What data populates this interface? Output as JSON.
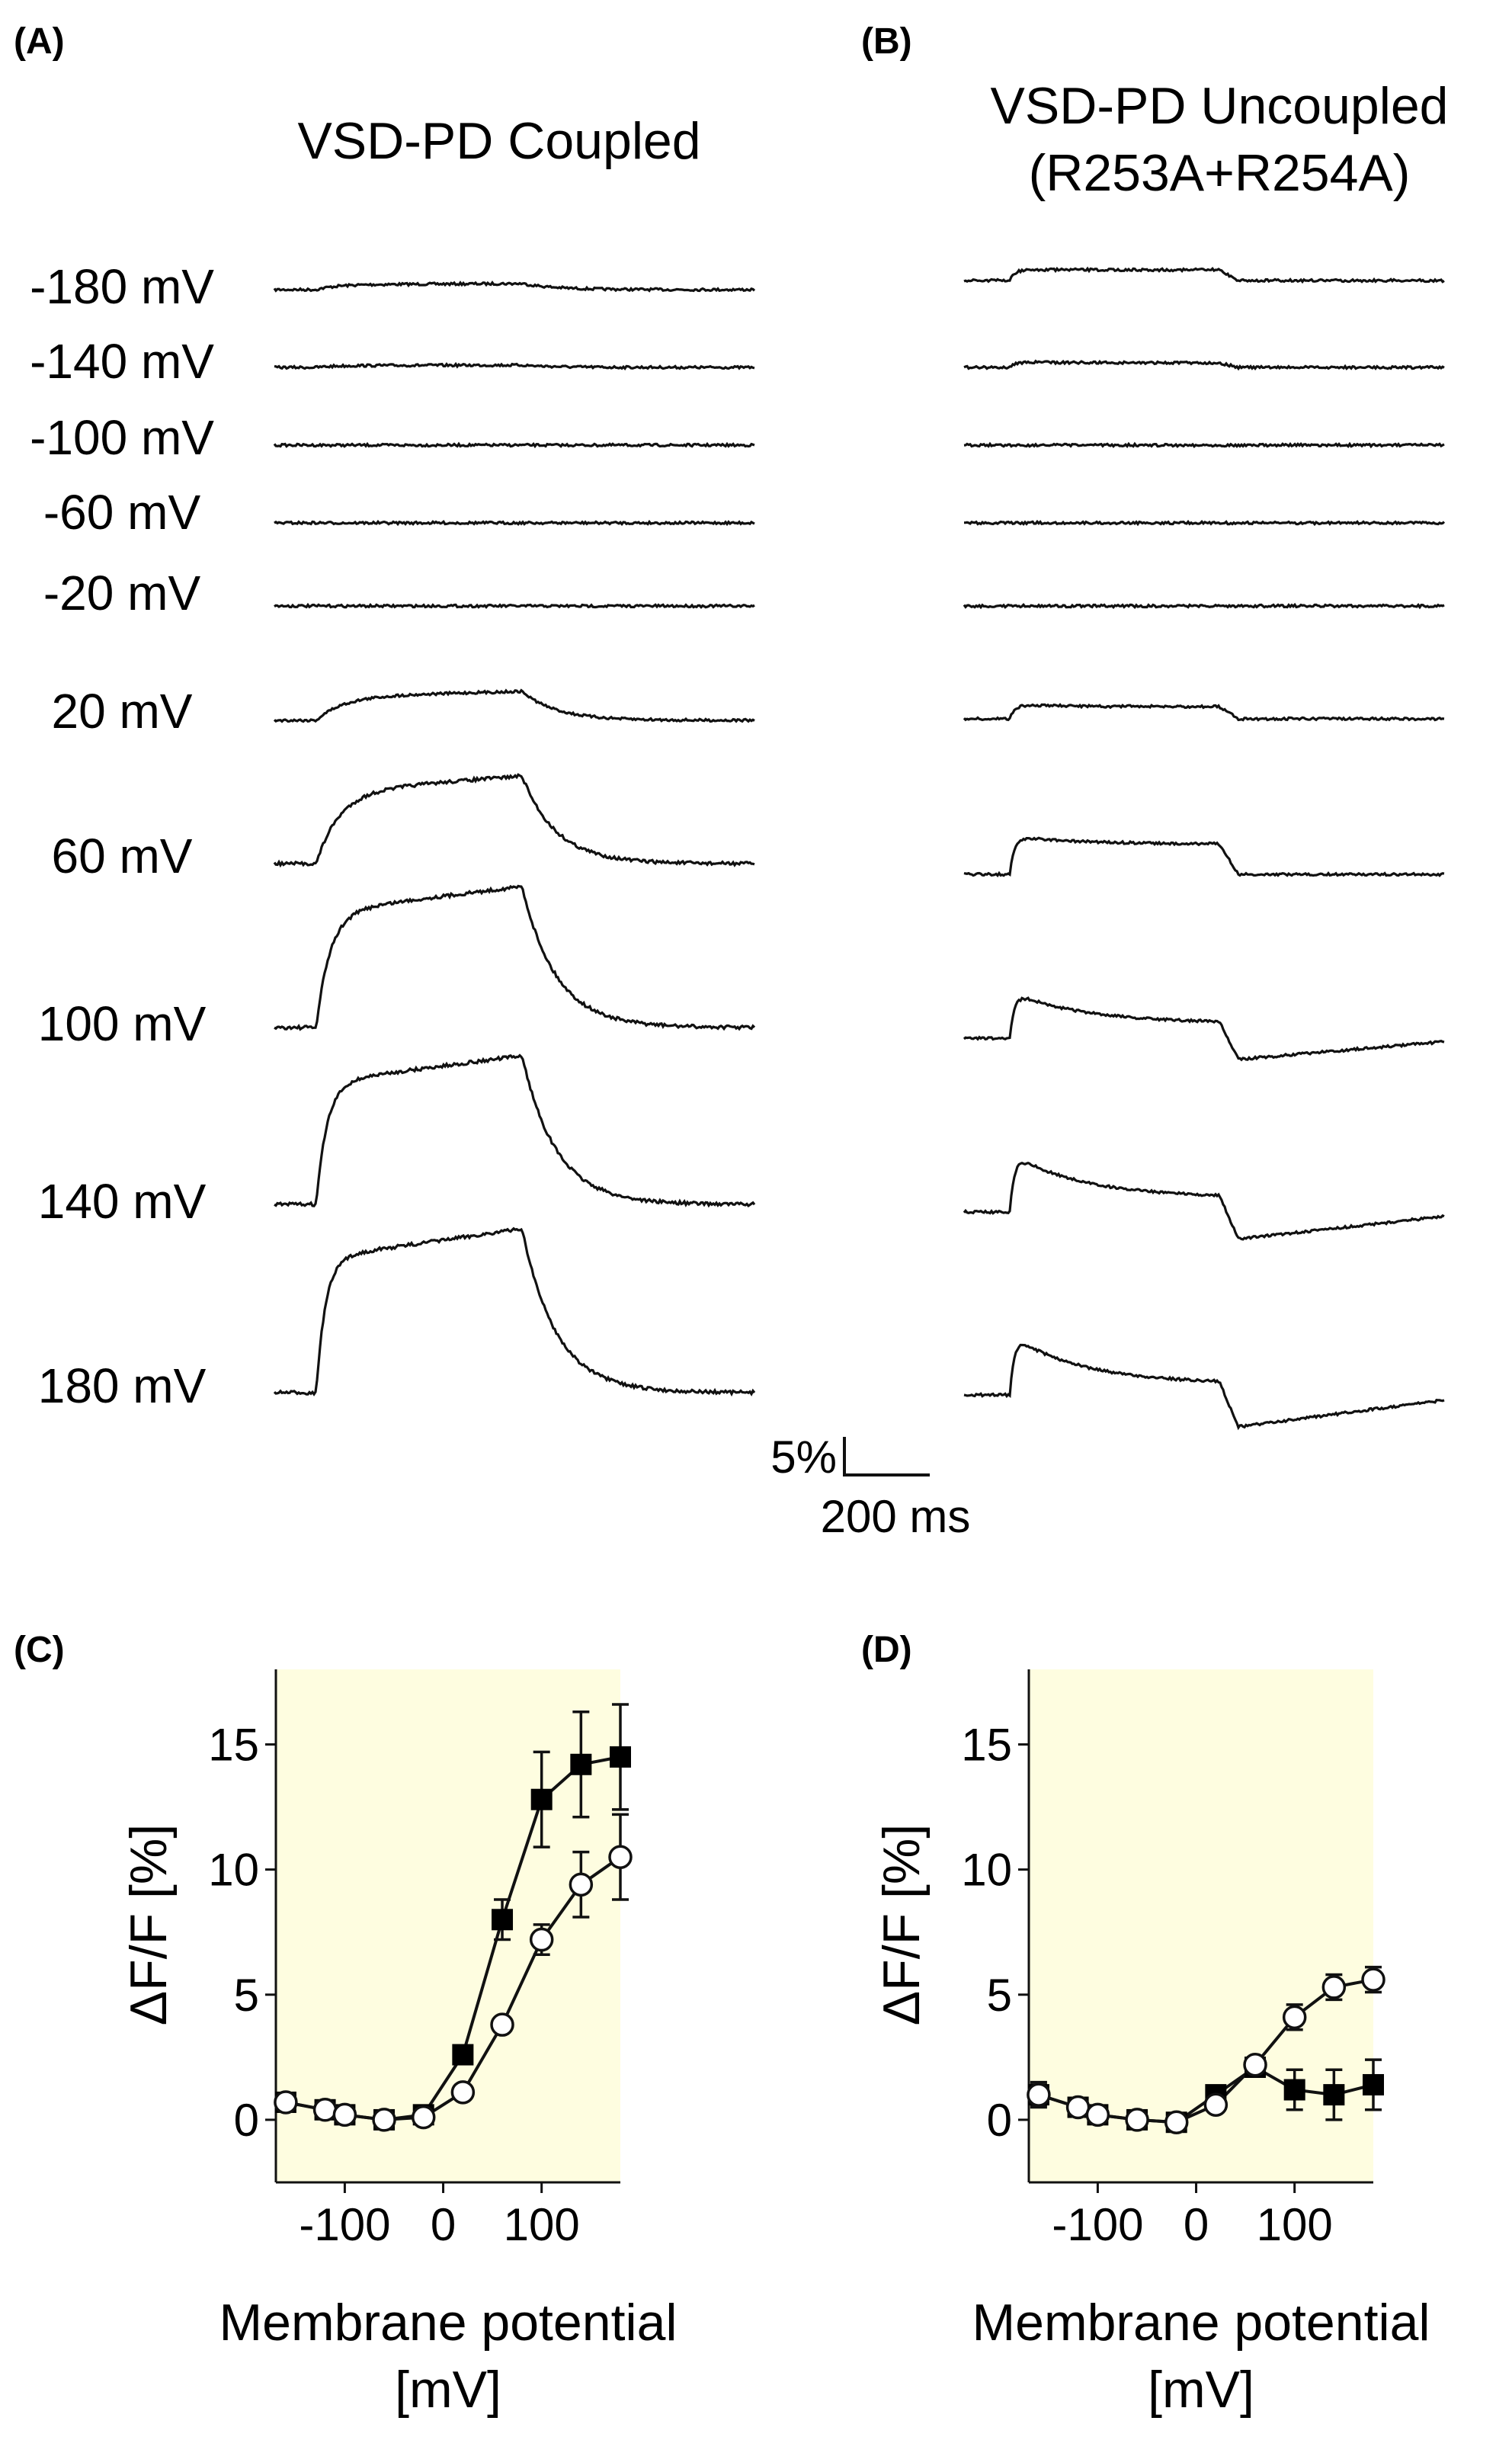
{
  "panels": {
    "A": {
      "letter": "(A)",
      "title": "VSD-PD Coupled",
      "voltage_labels": [
        "-180 mV",
        "-140 mV",
        "-100 mV",
        "-60 mV",
        "-20 mV",
        "20 mV",
        "60 mV",
        "100 mV",
        "140 mV",
        "180 mV"
      ]
    },
    "B": {
      "letter": "(B)",
      "title_line1": "VSD-PD Uncoupled",
      "title_line2": "(R253A+R254A)"
    },
    "C": {
      "letter": "(C)"
    },
    "D": {
      "letter": "(D)"
    }
  },
  "scale_bar": {
    "y_label": "5%",
    "x_label": "200 ms",
    "y_value_percent": 5,
    "x_value_ms": 200
  },
  "colors": {
    "trace": "#111111",
    "plot_bg": "#fefde0",
    "filled_marker": "#000000",
    "open_marker": "#ffffff"
  },
  "chart_data": [
    {
      "panel": "C",
      "type": "scatter",
      "ylabel": "ΔF/F [%]",
      "xlabel_line1": "Membrane potential",
      "xlabel_line2": "[mV]",
      "xlim": [
        -170,
        180
      ],
      "ylim": [
        -2.5,
        18
      ],
      "xticks": [
        -100,
        0,
        100
      ],
      "yticks": [
        0,
        5,
        10,
        15
      ],
      "series": [
        {
          "marker": "filled-square",
          "x": [
            -160,
            -120,
            -100,
            -60,
            -20,
            20,
            60,
            100,
            140,
            180
          ],
          "y": [
            0.7,
            0.4,
            0.2,
            0.0,
            0.2,
            2.6,
            8.0,
            12.8,
            14.2,
            14.5
          ],
          "err": [
            0,
            0,
            0,
            0,
            0,
            0,
            0.8,
            1.9,
            2.1,
            2.1
          ]
        },
        {
          "marker": "open-circle",
          "x": [
            -160,
            -120,
            -100,
            -60,
            -20,
            20,
            60,
            100,
            140,
            180
          ],
          "y": [
            0.7,
            0.4,
            0.2,
            0.0,
            0.1,
            1.1,
            3.8,
            7.2,
            9.4,
            10.5
          ],
          "err": [
            0,
            0,
            0,
            0,
            0,
            0,
            0,
            0.6,
            1.3,
            1.7
          ]
        }
      ]
    },
    {
      "panel": "D",
      "type": "scatter",
      "ylabel": "ΔF/F [%]",
      "xlabel_line1": "Membrane potential",
      "xlabel_line2": "[mV]",
      "xlim": [
        -170,
        180
      ],
      "ylim": [
        -2.5,
        18
      ],
      "xticks": [
        -100,
        0,
        100
      ],
      "yticks": [
        0,
        5,
        10,
        15
      ],
      "series": [
        {
          "marker": "filled-square",
          "x": [
            -160,
            -120,
            -100,
            -60,
            -20,
            20,
            60,
            100,
            140,
            180
          ],
          "y": [
            1.0,
            0.5,
            0.2,
            0.0,
            -0.1,
            1.0,
            2.1,
            1.2,
            1.0,
            1.4
          ],
          "err": [
            0.5,
            0.3,
            0,
            0,
            0,
            0.3,
            0.3,
            0.8,
            1.0,
            1.0
          ]
        },
        {
          "marker": "open-circle",
          "x": [
            -160,
            -120,
            -100,
            -60,
            -20,
            20,
            60,
            100,
            140,
            180
          ],
          "y": [
            1.0,
            0.5,
            0.2,
            0.0,
            -0.1,
            0.6,
            2.2,
            4.1,
            5.3,
            5.6
          ],
          "err": [
            0.4,
            0.3,
            0,
            0,
            0,
            0.2,
            0.3,
            0.5,
            0.5,
            0.5
          ]
        }
      ]
    }
  ]
}
